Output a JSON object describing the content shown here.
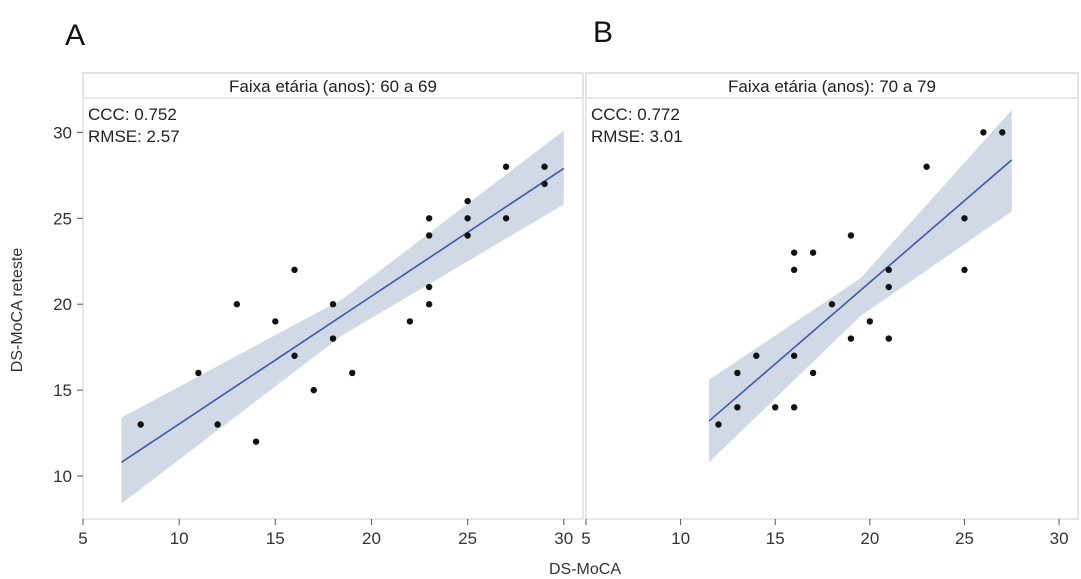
{
  "chart_data": [
    {
      "type": "scatter",
      "panel_label": "A",
      "strip_title": "Faixa etária (anos): 60 a 69",
      "annotations": [
        "CCC: 0.752",
        "RMSE: 2.57"
      ],
      "xlabel": "DS-MoCA",
      "ylabel": "DS-MoCA reteste",
      "xlim": [
        5,
        31
      ],
      "ylim": [
        7.5,
        32
      ],
      "xticks": [
        5,
        10,
        15,
        20,
        25,
        30
      ],
      "yticks": [
        10,
        15,
        20,
        25,
        30
      ],
      "points": [
        [
          8,
          13
        ],
        [
          11,
          16
        ],
        [
          12,
          13
        ],
        [
          13,
          20
        ],
        [
          14,
          12
        ],
        [
          15,
          19
        ],
        [
          16,
          22
        ],
        [
          16,
          17
        ],
        [
          17,
          15
        ],
        [
          18,
          20
        ],
        [
          18,
          18
        ],
        [
          19,
          16
        ],
        [
          22,
          19
        ],
        [
          23,
          25
        ],
        [
          23,
          24
        ],
        [
          23,
          21
        ],
        [
          23,
          20
        ],
        [
          25,
          26
        ],
        [
          25,
          25
        ],
        [
          25,
          24
        ],
        [
          27,
          28
        ],
        [
          27,
          25
        ],
        [
          29,
          28
        ],
        [
          29,
          27
        ]
      ],
      "fit_line": {
        "x": [
          7,
          30
        ],
        "y": [
          10.8,
          27.9
        ]
      },
      "confidence_band": {
        "x": [
          7,
          18.5,
          30
        ],
        "lower": [
          8.4,
          18.2,
          25.8
        ],
        "upper": [
          13.4,
          20.3,
          30.1
        ]
      },
      "point_color": "#111111",
      "line_color": "#3d5aa8",
      "band_color": "#c9d2e3"
    },
    {
      "type": "scatter",
      "panel_label": "B",
      "strip_title": "Faixa etária (anos): 70 a 79",
      "annotations": [
        "CCC: 0.772",
        "RMSE: 3.01"
      ],
      "xlabel": "DS-MoCA",
      "ylabel": "DS-MoCA reteste",
      "xlim": [
        5,
        31
      ],
      "ylim": [
        7.5,
        32
      ],
      "xticks": [
        5,
        10,
        15,
        20,
        25,
        30
      ],
      "yticks": [
        10,
        15,
        20,
        25,
        30
      ],
      "points": [
        [
          12,
          13
        ],
        [
          13,
          16
        ],
        [
          13,
          14
        ],
        [
          14,
          17
        ],
        [
          15,
          14
        ],
        [
          16,
          23
        ],
        [
          16,
          22
        ],
        [
          16,
          17
        ],
        [
          16,
          14
        ],
        [
          17,
          23
        ],
        [
          17,
          16
        ],
        [
          18,
          20
        ],
        [
          19,
          24
        ],
        [
          19,
          18
        ],
        [
          20,
          19
        ],
        [
          21,
          22
        ],
        [
          21,
          21
        ],
        [
          21,
          18
        ],
        [
          23,
          28
        ],
        [
          25,
          25
        ],
        [
          25,
          22
        ],
        [
          26,
          30
        ],
        [
          27,
          30
        ]
      ],
      "fit_line": {
        "x": [
          11.5,
          27.5
        ],
        "y": [
          13.2,
          28.4
        ]
      },
      "confidence_band": {
        "x": [
          11.5,
          19.5,
          27.5
        ],
        "lower": [
          10.8,
          19.3,
          25.4
        ],
        "upper": [
          15.6,
          21.5,
          31.3
        ]
      },
      "point_color": "#111111",
      "line_color": "#3d5aa8",
      "band_color": "#c9d2e3"
    }
  ]
}
